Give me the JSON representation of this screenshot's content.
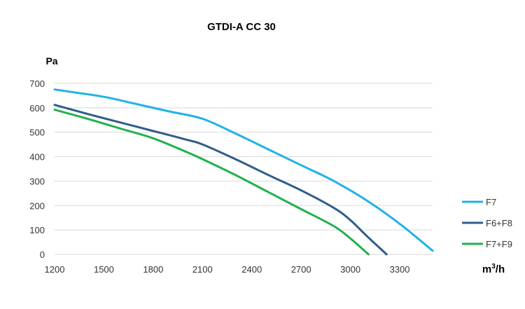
{
  "chart_data": {
    "type": "line",
    "title": "GTDI-A CC 30",
    "ylabel": "Pa",
    "xlabel_base": "m",
    "xlabel_sup": "3",
    "xlabel_tail": "/h",
    "xlim": [
      1200,
      3500
    ],
    "ylim": [
      0,
      700
    ],
    "x_ticks": [
      1200,
      1500,
      1800,
      2100,
      2400,
      2700,
      3000,
      3300
    ],
    "y_ticks": [
      0,
      100,
      200,
      300,
      400,
      500,
      600,
      700
    ],
    "grid": "horizontal",
    "legend_position": "right",
    "series": [
      {
        "name": "F7",
        "color": "#1fb2e6",
        "x": [
          1200,
          1300,
          1500,
          1700,
          1900,
          2100,
          2300,
          2500,
          2700,
          2900,
          3100,
          3300,
          3500
        ],
        "y": [
          675,
          665,
          645,
          615,
          585,
          555,
          495,
          430,
          365,
          300,
          220,
          125,
          15
        ]
      },
      {
        "name": "F6+F8",
        "color": "#2f5d8a",
        "x": [
          1200,
          1400,
          1600,
          1800,
          2000,
          2100,
          2300,
          2500,
          2700,
          2900,
          3000,
          3100,
          3220
        ],
        "y": [
          612,
          575,
          540,
          505,
          470,
          450,
          390,
          325,
          262,
          190,
          140,
          75,
          0
        ]
      },
      {
        "name": "F7+F9",
        "color": "#22b14c",
        "x": [
          1200,
          1400,
          1600,
          1800,
          2000,
          2100,
          2300,
          2500,
          2700,
          2900,
          3000,
          3110
        ],
        "y": [
          592,
          555,
          515,
          475,
          420,
          390,
          325,
          255,
          185,
          115,
          65,
          0
        ]
      }
    ]
  }
}
